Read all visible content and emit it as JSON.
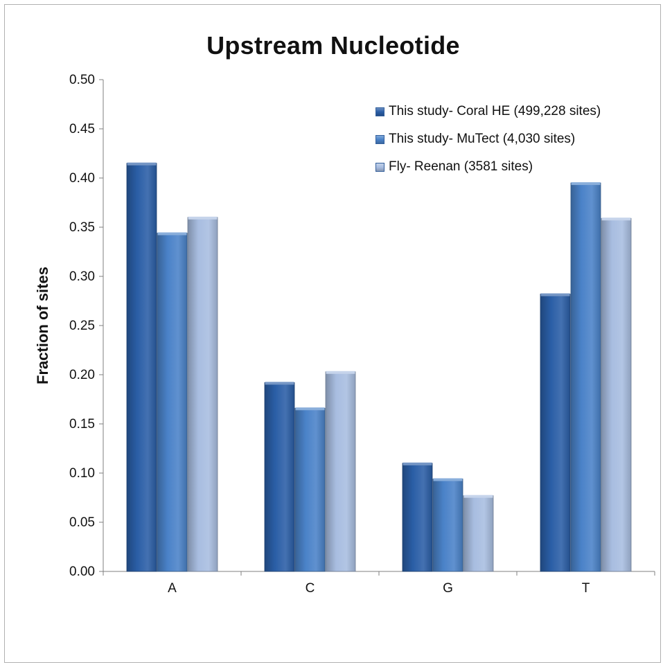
{
  "chart_data": {
    "type": "bar",
    "title": "Upstream Nucleotide",
    "xlabel": "",
    "ylabel": "Fraction of sites",
    "categories": [
      "A",
      "C",
      "G",
      "T"
    ],
    "ylim": [
      0,
      0.5
    ],
    "yticks": [
      "0.00",
      "0.05",
      "0.10",
      "0.15",
      "0.20",
      "0.25",
      "0.30",
      "0.35",
      "0.40",
      "0.45",
      "0.50"
    ],
    "grid": false,
    "legend_position": "top-right",
    "series": [
      {
        "name": "This study- Coral HE (499,228 sites)",
        "values": [
          0.415,
          0.192,
          0.11,
          0.282
        ],
        "color": "#2a5ea6"
      },
      {
        "name": "This study- MuTect (4,030 sites)",
        "values": [
          0.344,
          0.166,
          0.094,
          0.395
        ],
        "color": "#4a82c8"
      },
      {
        "name": "Fly- Reenan (3581 sites)",
        "values": [
          0.36,
          0.203,
          0.077,
          0.359
        ],
        "color": "#a8bde0"
      }
    ]
  }
}
